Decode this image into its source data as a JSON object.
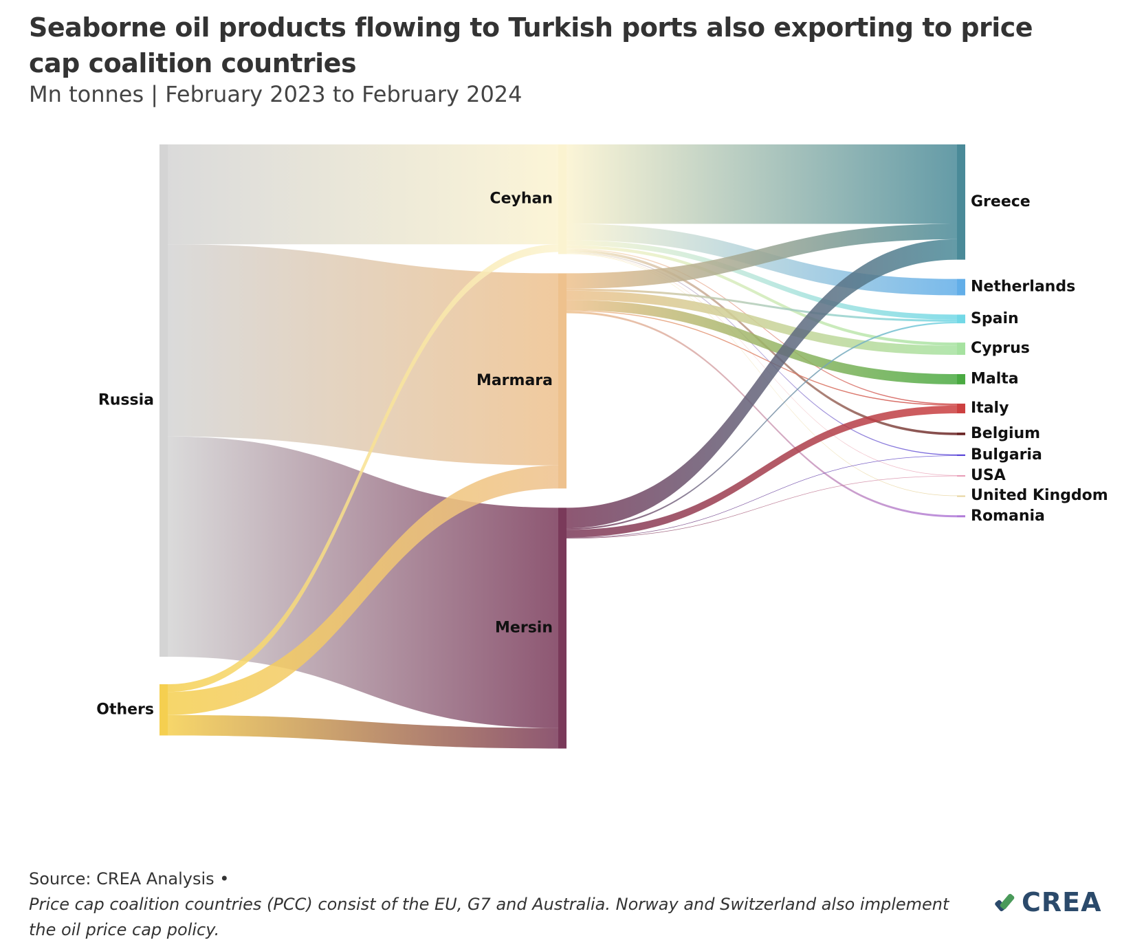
{
  "header": {
    "title": "Seaborne oil products flowing to Turkish ports also exporting to price cap coalition countries",
    "subtitle": "Mn tonnes | February 2023 to February 2024"
  },
  "footer": {
    "source": "Source: CREA Analysis •",
    "note": "Price cap coalition countries (PCC) consist of the EU, G7 and Australia. Norway and Switzerland also implement the oil price cap policy."
  },
  "logo": {
    "text": "CREA",
    "icon": "crea-check-icon"
  },
  "chart_data": {
    "type": "sankey",
    "nodes": [
      {
        "id": "russia",
        "label": "Russia",
        "column": 0,
        "color": "#d4d4d4"
      },
      {
        "id": "others",
        "label": "Others",
        "column": 0,
        "color": "#f5cf50"
      },
      {
        "id": "ceyhan",
        "label": "Ceyhan",
        "column": 1,
        "color": "#fbf3d0"
      },
      {
        "id": "marmara",
        "label": "Marmara",
        "column": 1,
        "color": "#eec18d"
      },
      {
        "id": "mersin",
        "label": "Mersin",
        "column": 1,
        "color": "#7a3a5a"
      },
      {
        "id": "greece",
        "label": "Greece",
        "column": 2,
        "color": "#4a8a98"
      },
      {
        "id": "netherlands",
        "label": "Netherlands",
        "column": 2,
        "color": "#62aee8"
      },
      {
        "id": "spain",
        "label": "Spain",
        "column": 2,
        "color": "#72d8e6"
      },
      {
        "id": "cyprus",
        "label": "Cyprus",
        "column": 2,
        "color": "#a6e2a0"
      },
      {
        "id": "malta",
        "label": "Malta",
        "column": 2,
        "color": "#4aaa42"
      },
      {
        "id": "italy",
        "label": "Italy",
        "column": 2,
        "color": "#cc4040"
      },
      {
        "id": "belgium",
        "label": "Belgium",
        "column": 2,
        "color": "#6a2424"
      },
      {
        "id": "bulgaria",
        "label": "Bulgaria",
        "column": 2,
        "color": "#5a46d8"
      },
      {
        "id": "usa",
        "label": "USA",
        "column": 2,
        "color": "#e89ab4"
      },
      {
        "id": "uk",
        "label": "United Kingdom",
        "column": 2,
        "color": "#e6d29a"
      },
      {
        "id": "romania",
        "label": "Romania",
        "column": 2,
        "color": "#b07ad8"
      }
    ],
    "links": [
      {
        "source": "russia",
        "target": "ceyhan",
        "value": 1.95
      },
      {
        "source": "russia",
        "target": "marmara",
        "value": 3.75
      },
      {
        "source": "russia",
        "target": "mersin",
        "value": 4.3
      },
      {
        "source": "others",
        "target": "ceyhan",
        "value": 0.15
      },
      {
        "source": "others",
        "target": "marmara",
        "value": 0.45
      },
      {
        "source": "others",
        "target": "mersin",
        "value": 0.4
      },
      {
        "source": "ceyhan",
        "target": "greece",
        "value": 1.55
      },
      {
        "source": "ceyhan",
        "target": "netherlands",
        "value": 0.32
      },
      {
        "source": "ceyhan",
        "target": "spain",
        "value": 0.1
      },
      {
        "source": "ceyhan",
        "target": "cyprus",
        "value": 0.06
      },
      {
        "source": "ceyhan",
        "target": "belgium",
        "value": 0.05
      },
      {
        "source": "ceyhan",
        "target": "bulgaria",
        "value": 0.02
      },
      {
        "source": "ceyhan",
        "target": "italy",
        "value": 0.02
      },
      {
        "source": "ceyhan",
        "target": "usa",
        "value": 0.01
      },
      {
        "source": "ceyhan",
        "target": "uk",
        "value": 0.01
      },
      {
        "source": "marmara",
        "target": "greece",
        "value": 0.3
      },
      {
        "source": "marmara",
        "target": "spain",
        "value": 0.04
      },
      {
        "source": "marmara",
        "target": "cyprus",
        "value": 0.18
      },
      {
        "source": "marmara",
        "target": "malta",
        "value": 0.2
      },
      {
        "source": "marmara",
        "target": "italy",
        "value": 0.02
      },
      {
        "source": "marmara",
        "target": "romania",
        "value": 0.04
      },
      {
        "source": "mersin",
        "target": "greece",
        "value": 0.4
      },
      {
        "source": "mersin",
        "target": "spain",
        "value": 0.03
      },
      {
        "source": "mersin",
        "target": "italy",
        "value": 0.15
      },
      {
        "source": "mersin",
        "target": "bulgaria",
        "value": 0.01
      },
      {
        "source": "mersin",
        "target": "usa",
        "value": 0.01
      }
    ]
  }
}
